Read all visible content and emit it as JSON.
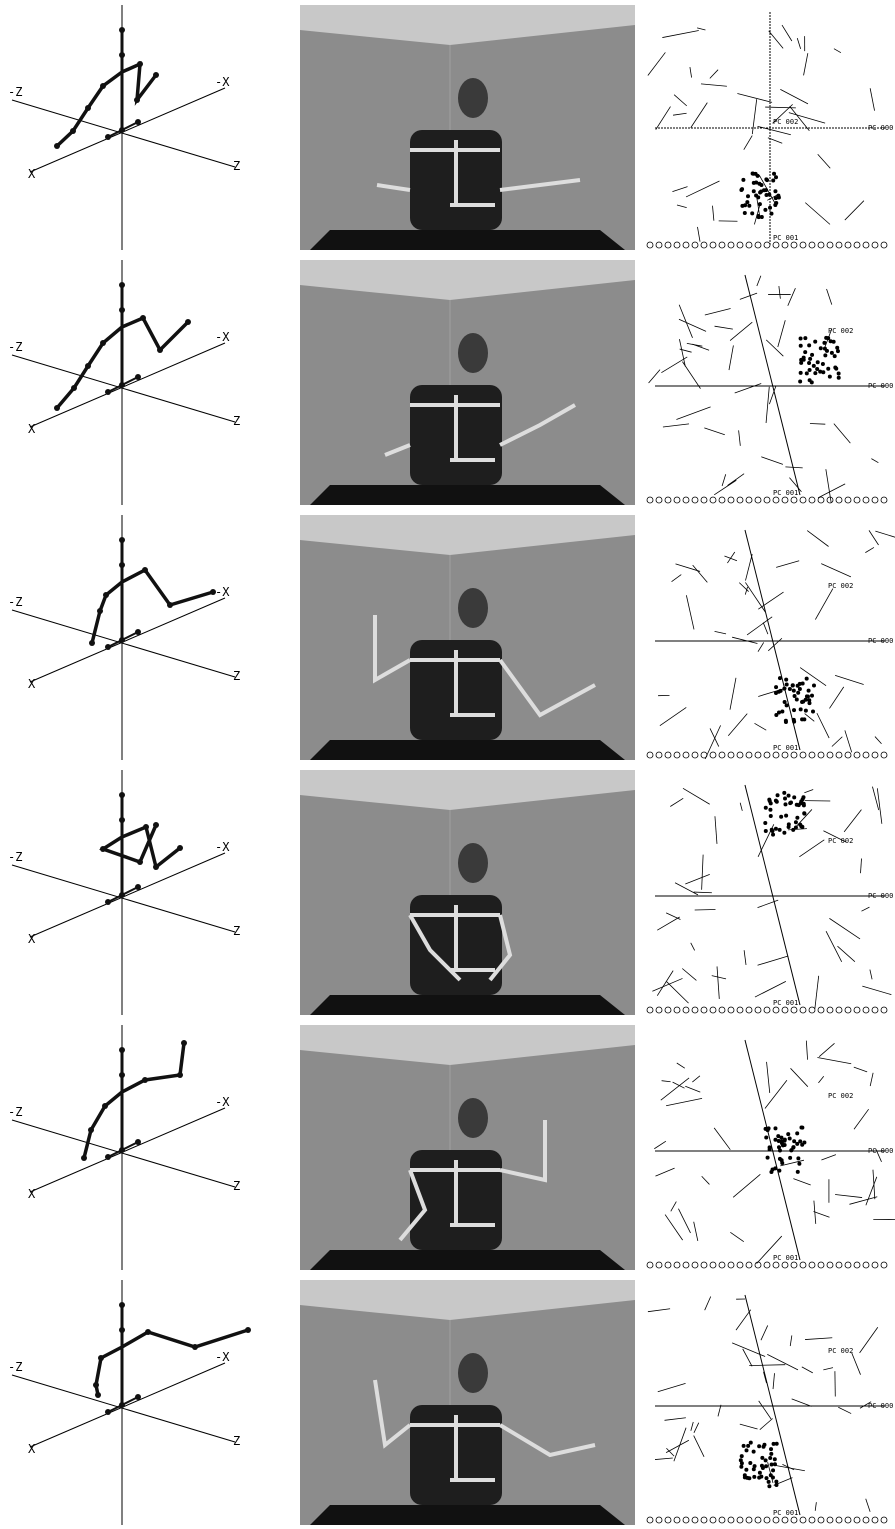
{
  "figure": {
    "rows": [
      {
        "skeleton_axes": {
          "neg_z": "-Z",
          "neg_x": "-X",
          "x": "X",
          "z": "Z"
        },
        "pca_labels": {
          "pc2": "PC 002",
          "pc0": "PC 000",
          "pc1": "PC 001"
        }
      },
      {
        "skeleton_axes": {
          "neg_z": "-Z",
          "neg_x": "-X",
          "x": "X",
          "z": "Z"
        },
        "pca_labels": {
          "pc2": "PC 002",
          "pc0": "PC 000",
          "pc1": "PC 001"
        }
      },
      {
        "skeleton_axes": {
          "neg_z": "-Z",
          "neg_x": "-X",
          "x": "X",
          "z": "Z"
        },
        "pca_labels": {
          "pc2": "PC 002",
          "pc0": "PC 000",
          "pc1": "PC 001"
        }
      },
      {
        "skeleton_axes": {
          "neg_z": "-Z",
          "neg_x": "-X",
          "x": "X",
          "z": "Z"
        },
        "pca_labels": {
          "pc2": "PC 002",
          "pc0": "PC 000",
          "pc1": "PC 001"
        }
      },
      {
        "skeleton_axes": {
          "neg_z": "-Z",
          "neg_x": "-X",
          "x": "X",
          "z": "Z"
        },
        "pca_labels": {
          "pc2": "PC 002",
          "pc0": "PC 000",
          "pc1": "PC 001"
        }
      },
      {
        "skeleton_axes": {
          "neg_z": "-Z",
          "neg_x": "-X",
          "x": "X",
          "z": "Z"
        },
        "pca_labels": {
          "pc2": "PC 002",
          "pc0": "PC 000",
          "pc1": "PC 001"
        }
      }
    ]
  }
}
